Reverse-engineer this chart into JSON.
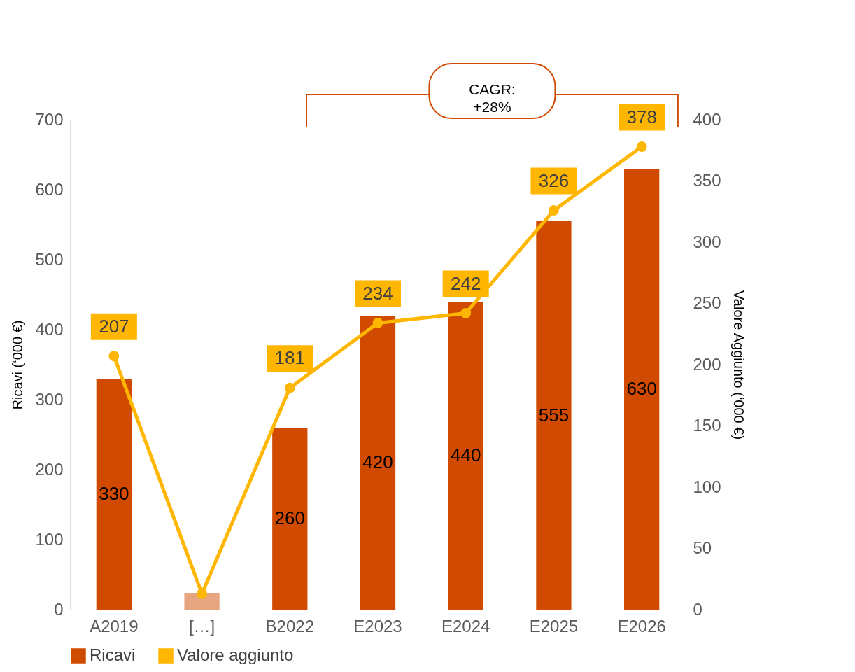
{
  "chart_data": {
    "type": "bar",
    "categories": [
      "A2019",
      "[…]",
      "B2022",
      "E2023",
      "E2024",
      "E2025",
      "E2026"
    ],
    "ylabel": "Ricavi (‘000 €)",
    "y2label": "Valore Aggiunto (‘000 €)",
    "ylim": [
      0,
      700
    ],
    "yticks": [
      0,
      100,
      200,
      300,
      400,
      500,
      600,
      700
    ],
    "y2lim": [
      0,
      400
    ],
    "y2ticks": [
      0,
      50,
      100,
      150,
      200,
      250,
      300,
      350,
      400
    ],
    "grid": "y",
    "legend": "bottom",
    "annotations": [
      "CAGR:\n+28%"
    ],
    "series": [
      {
        "name": "Ricavi",
        "color": "#d04a02",
        "colors": [
          "#d04a02",
          "#e7a57f",
          "#d04a02",
          "#d04a02",
          "#d04a02",
          "#d04a02",
          "#d04a02"
        ],
        "values": [
          330,
          24,
          260,
          420,
          440,
          555,
          630
        ],
        "value_labels": [
          "330",
          null,
          "260",
          "420",
          "440",
          "555",
          "630"
        ]
      },
      {
        "name": "Valore aggiunto",
        "type": "line",
        "axis": "y2",
        "color": "#ffb600",
        "marker": "circle",
        "line_style": "solid",
        "values": [
          207,
          13,
          181,
          234,
          242,
          326,
          378
        ],
        "value_labels": [
          "207",
          null,
          "181",
          "234",
          "242",
          "326",
          "378"
        ]
      }
    ]
  }
}
